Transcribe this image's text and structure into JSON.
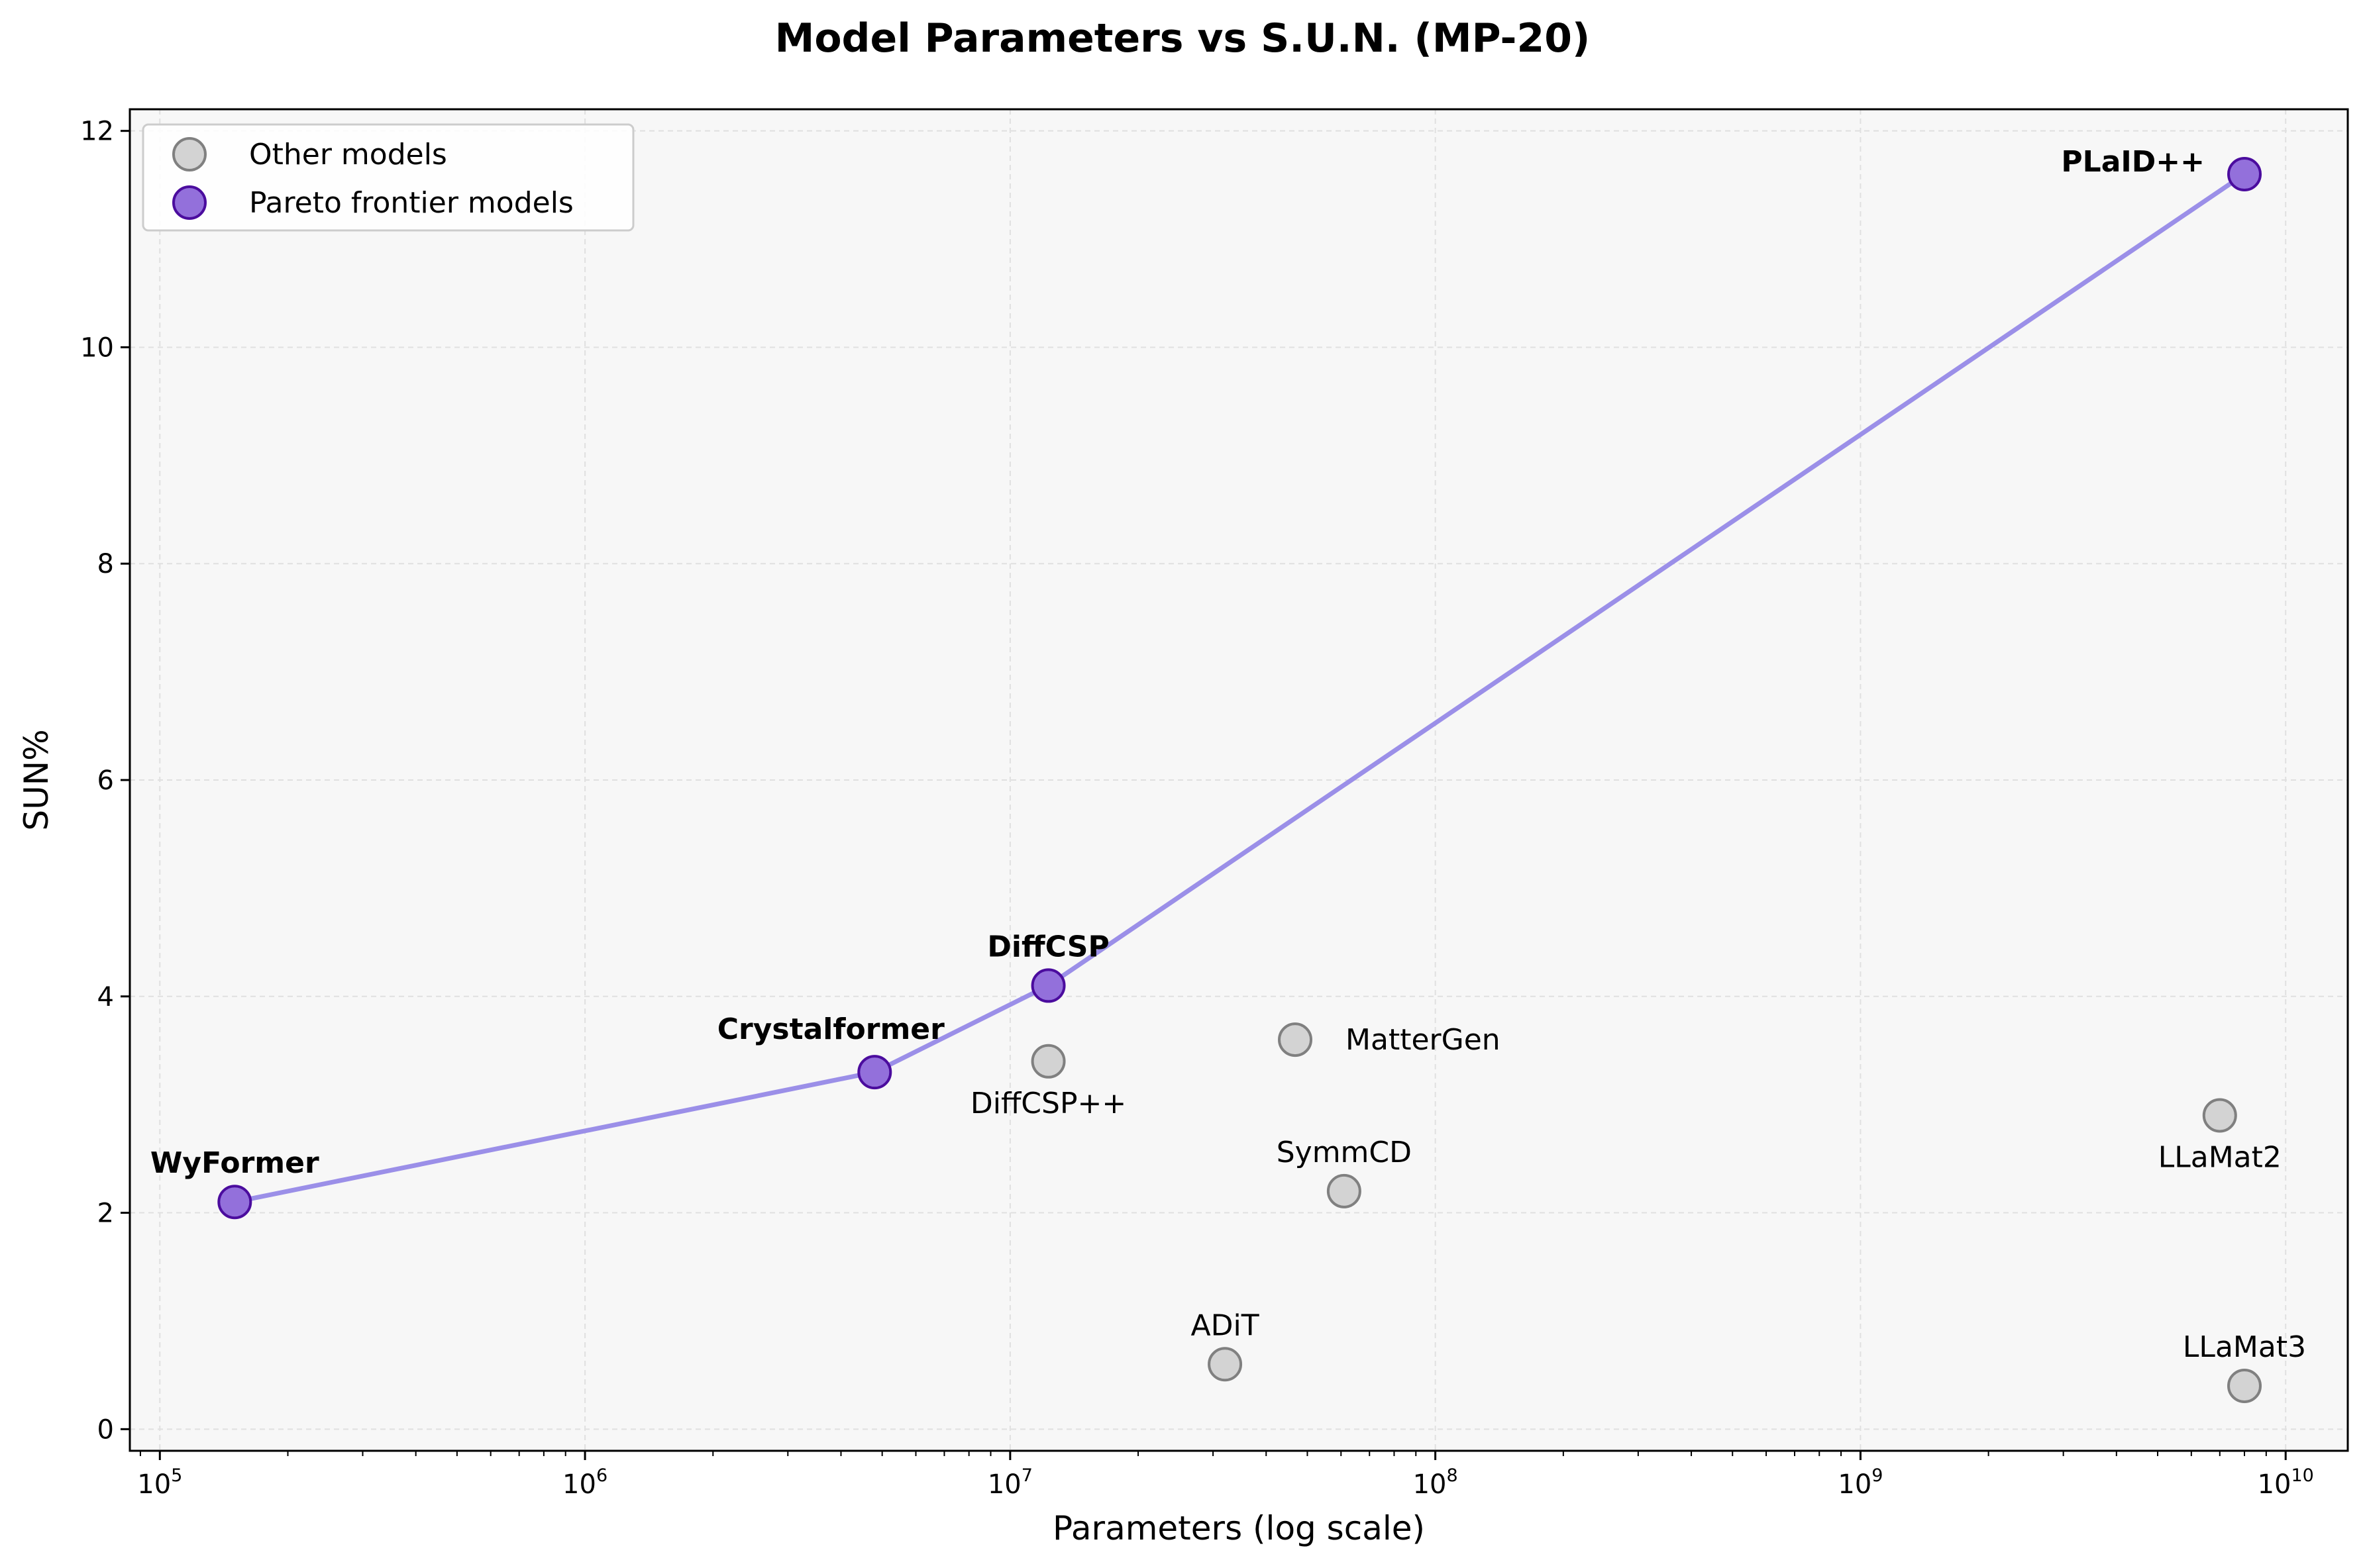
{
  "colors": {
    "background": "#f7f7f7",
    "grid": "#e0e0e0",
    "other_fill": "#d3d3d3",
    "other_edge": "#808080",
    "pareto_fill": "#9370db",
    "pareto_edge": "#4b0c9e",
    "pareto_line": "#9b8fe8"
  },
  "chart_data": {
    "type": "scatter",
    "title": "Model Parameters vs S.U.N. (MP-20)",
    "xlabel": "Parameters (log scale)",
    "ylabel": "SUN%",
    "xscale": "log",
    "xlim": [
      85000,
      14000000000
    ],
    "ylim": [
      -0.2,
      12.2
    ],
    "x_ticks": [
      {
        "value": 100000,
        "base": "10",
        "exp": "5"
      },
      {
        "value": 1000000,
        "base": "10",
        "exp": "6"
      },
      {
        "value": 10000000,
        "base": "10",
        "exp": "7"
      },
      {
        "value": 100000000,
        "base": "10",
        "exp": "8"
      },
      {
        "value": 1000000000,
        "base": "10",
        "exp": "9"
      },
      {
        "value": 10000000000,
        "base": "10",
        "exp": "10"
      }
    ],
    "y_ticks": [
      0,
      2,
      4,
      6,
      8,
      10,
      12
    ],
    "grid": true,
    "legend": {
      "position": "top-left",
      "entries": [
        {
          "label": "Other models",
          "series": "other"
        },
        {
          "label": "Pareto frontier models",
          "series": "pareto"
        }
      ]
    },
    "series": [
      {
        "name": "Other models",
        "key": "other",
        "points": [
          {
            "label": "DiffCSP++",
            "x": 12300000,
            "y": 3.4,
            "label_pos": "below"
          },
          {
            "label": "MatterGen",
            "x": 46800000,
            "y": 3.6,
            "label_pos": "right"
          },
          {
            "label": "SymmCD",
            "x": 61000000,
            "y": 2.2,
            "label_pos": "above"
          },
          {
            "label": "ADiT",
            "x": 32000000,
            "y": 0.6,
            "label_pos": "above"
          },
          {
            "label": "LLaMat2",
            "x": 7000000000,
            "y": 2.9,
            "label_pos": "below"
          },
          {
            "label": "LLaMat3",
            "x": 8000000000,
            "y": 0.4,
            "label_pos": "above"
          }
        ]
      },
      {
        "name": "Pareto frontier models",
        "key": "pareto",
        "connected": true,
        "points": [
          {
            "label": "WyFormer",
            "x": 150000,
            "y": 2.1,
            "label_pos": "above"
          },
          {
            "label": "Crystalformer",
            "x": 4800000,
            "y": 3.3,
            "label_pos": "above-left"
          },
          {
            "label": "DiffCSP",
            "x": 12300000,
            "y": 4.1,
            "label_pos": "above"
          },
          {
            "label": "PLaID++",
            "x": 8000000000,
            "y": 11.6,
            "label_pos": "left"
          }
        ]
      }
    ]
  }
}
